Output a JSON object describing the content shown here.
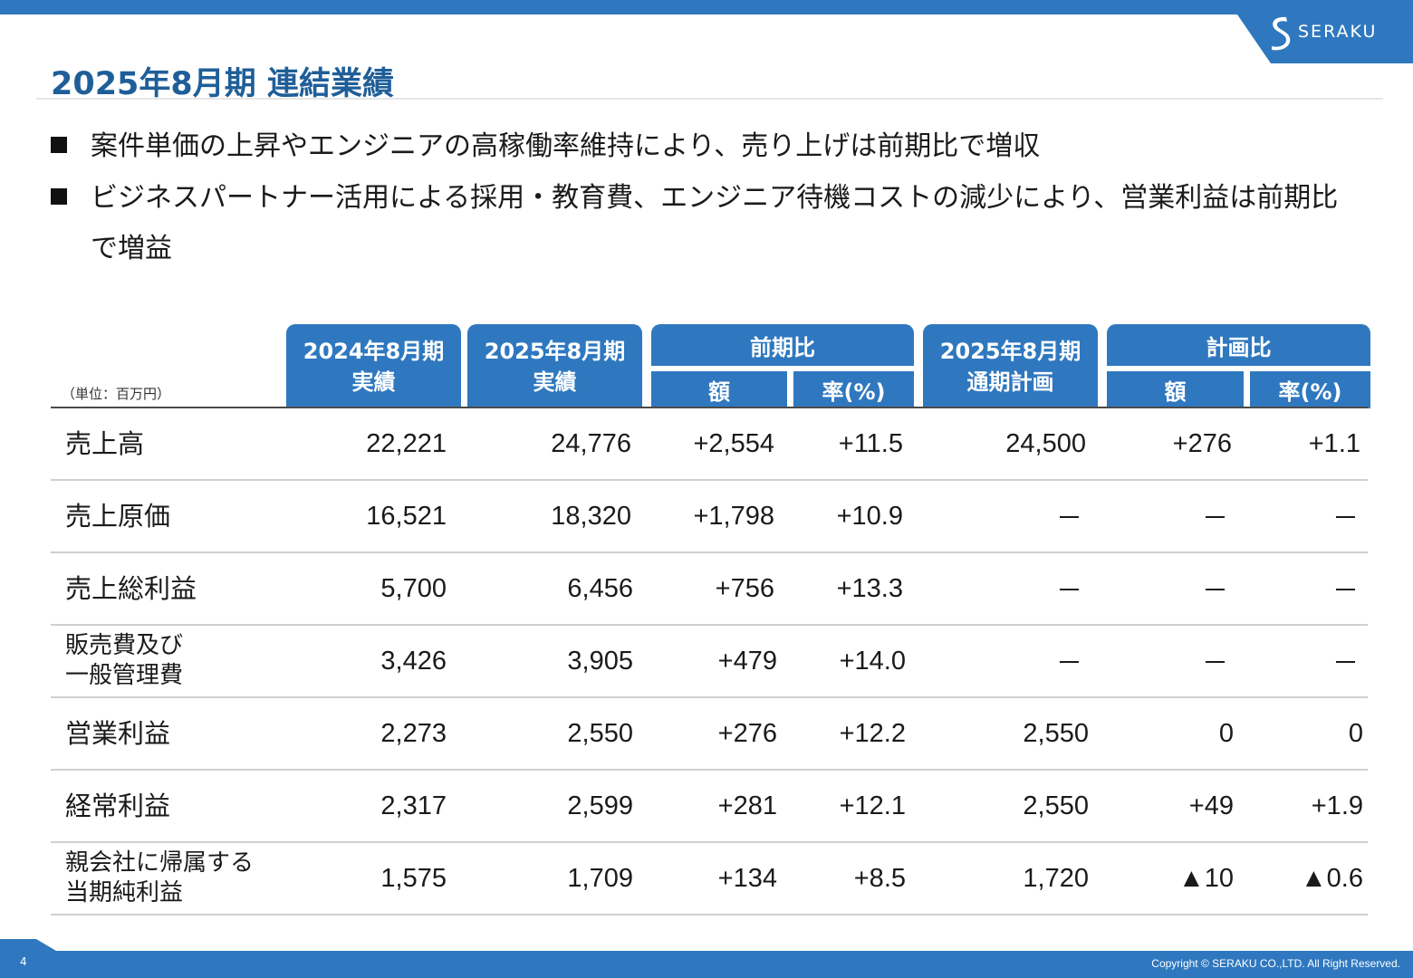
{
  "brand": {
    "logo_text": "SERAKU",
    "accent": "#2f78bf",
    "title_color": "#1f5e98"
  },
  "title": "2025年8月期 連結業績",
  "bullets": [
    {
      "line1": "案件単価の上昇やエンジニアの高稼働率維持により、売り上げは前期比で増収"
    },
    {
      "line1": "ビジネスパートナー活用による採用・教育費、エンジニア待機コストの減少により、営業利益は前期比",
      "line2": "で増益"
    }
  ],
  "table": {
    "unit": "（単位：百万円）",
    "headers": {
      "fy2024": {
        "line1": "2024年8月期",
        "line2": "実績"
      },
      "fy2025": {
        "line1": "2025年8月期",
        "line2": "実績"
      },
      "yoy": {
        "label": "前期比",
        "amount": "額",
        "rate": "率(%)"
      },
      "plan": {
        "line1": "2025年8月期",
        "line2": "通期計画"
      },
      "vs_plan": {
        "label": "計画比",
        "amount": "額",
        "rate": "率(%)"
      }
    },
    "rows": [
      {
        "label1": "売上高",
        "label2": "",
        "fy2024": "22,221",
        "fy2025": "24,776",
        "yoy_amt": "+2,554",
        "yoy_rate": "+11.5",
        "plan": "24,500",
        "plan_amt": "+276",
        "plan_rate": "+1.1"
      },
      {
        "label1": "売上原価",
        "label2": "",
        "fy2024": "16,521",
        "fy2025": "18,320",
        "yoy_amt": "+1,798",
        "yoy_rate": "+10.9",
        "plan": "－",
        "plan_amt": "－",
        "plan_rate": "－"
      },
      {
        "label1": "売上総利益",
        "label2": "",
        "fy2024": "5,700",
        "fy2025": "6,456",
        "yoy_amt": "+756",
        "yoy_rate": "+13.3",
        "plan": "－",
        "plan_amt": "－",
        "plan_rate": "－"
      },
      {
        "label1": "販売費及び",
        "label2": "一般管理費",
        "fy2024": "3,426",
        "fy2025": "3,905",
        "yoy_amt": "+479",
        "yoy_rate": "+14.0",
        "plan": "－",
        "plan_amt": "－",
        "plan_rate": "－"
      },
      {
        "label1": "営業利益",
        "label2": "",
        "fy2024": "2,273",
        "fy2025": "2,550",
        "yoy_amt": "+276",
        "yoy_rate": "+12.2",
        "plan": "2,550",
        "plan_amt": "0",
        "plan_rate": "0"
      },
      {
        "label1": "経常利益",
        "label2": "",
        "fy2024": "2,317",
        "fy2025": "2,599",
        "yoy_amt": "+281",
        "yoy_rate": "+12.1",
        "plan": "2,550",
        "plan_amt": "+49",
        "plan_rate": "+1.9"
      },
      {
        "label1": "親会社に帰属する",
        "label2": "当期純利益",
        "fy2024": "1,575",
        "fy2025": "1,709",
        "yoy_amt": "+134",
        "yoy_rate": "+8.5",
        "plan": "1,720",
        "plan_amt": "▲10",
        "plan_rate": "▲0.6"
      }
    ]
  },
  "footer": {
    "page": "4",
    "copyright": "Copyright © SERAKU CO.,LTD. All Right Reserved."
  }
}
